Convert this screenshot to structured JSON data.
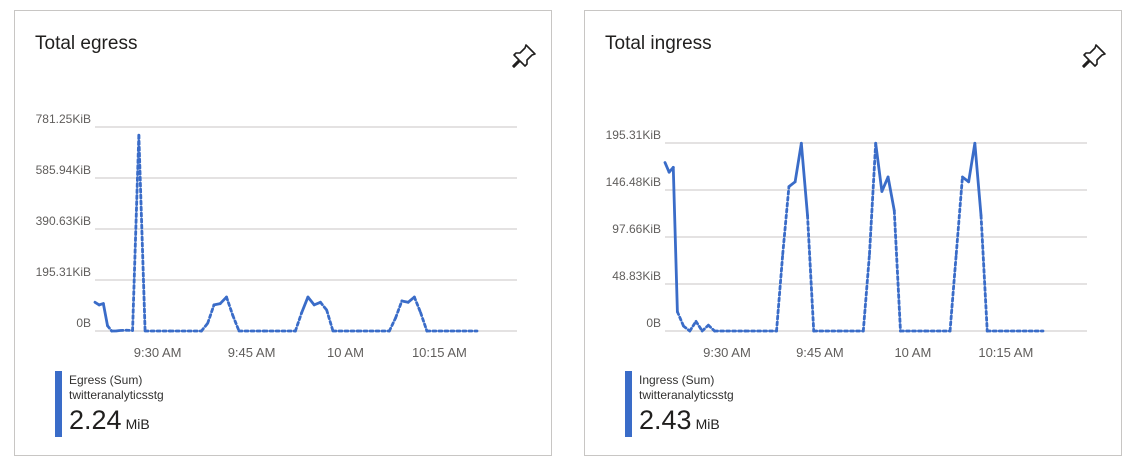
{
  "colors": {
    "series": "#3a6cc8",
    "grid": "#c8c6c4",
    "legend_bar": "#3a6cc8"
  },
  "icons": {
    "pin": "pin-icon"
  },
  "chart_data": [
    {
      "type": "line",
      "title": "Total egress",
      "y_unit": "KiB",
      "ylim": [
        0,
        781.25
      ],
      "y_ticks": [
        0,
        195.31,
        390.63,
        585.94,
        781.25
      ],
      "y_tick_labels": [
        "0B",
        "195.31KiB",
        "390.63KiB",
        "585.94KiB",
        "781.25KiB"
      ],
      "x_range": [
        "09:20",
        "10:21"
      ],
      "x_ticks": [
        "09:30",
        "09:45",
        "10:00",
        "10:15"
      ],
      "x_tick_labels": [
        "9:30 AM",
        "9:45 AM",
        "10 AM",
        "10:15 AM"
      ],
      "grid": true,
      "series": [
        {
          "name": "Egress (Sum)",
          "points": [
            [
              "09:20",
              110,
              "s"
            ],
            [
              "09:20:40",
              100,
              "s"
            ],
            [
              "09:21:20",
              105,
              "s"
            ],
            [
              "09:22",
              20,
              "s"
            ],
            [
              "09:22:40",
              0,
              "d"
            ],
            [
              "09:23:20",
              0,
              "d"
            ],
            [
              "09:24",
              2,
              "d"
            ],
            [
              "09:25",
              3,
              "d"
            ],
            [
              "09:26",
              2,
              "d"
            ],
            [
              "09:27",
              750,
              "d"
            ],
            [
              "09:28",
              0,
              "d"
            ],
            [
              "09:32",
              0,
              "d"
            ],
            [
              "09:37",
              0,
              "d"
            ],
            [
              "09:38",
              30,
              "d"
            ],
            [
              "09:39",
              100,
              "s"
            ],
            [
              "09:40",
              105,
              "s"
            ],
            [
              "09:41",
              130,
              "s"
            ],
            [
              "09:42",
              60,
              "d"
            ],
            [
              "09:43",
              0,
              "d"
            ],
            [
              "09:47",
              0,
              "d"
            ],
            [
              "09:52",
              0,
              "d"
            ],
            [
              "09:53",
              70,
              "s"
            ],
            [
              "09:54",
              130,
              "s"
            ],
            [
              "09:55",
              100,
              "s"
            ],
            [
              "09:56",
              110,
              "s"
            ],
            [
              "09:57",
              80,
              "d"
            ],
            [
              "09:58",
              0,
              "d"
            ],
            [
              "10:02",
              0,
              "d"
            ],
            [
              "10:07",
              0,
              "d"
            ],
            [
              "10:08",
              50,
              "d"
            ],
            [
              "10:09",
              115,
              "s"
            ],
            [
              "10:10",
              110,
              "s"
            ],
            [
              "10:11",
              130,
              "s"
            ],
            [
              "10:12",
              70,
              "d"
            ],
            [
              "10:13",
              0,
              "d"
            ],
            [
              "10:21",
              0,
              "d"
            ]
          ]
        }
      ]
    },
    {
      "type": "line",
      "title": "Total ingress",
      "y_unit": "KiB",
      "ylim": [
        0,
        195.31
      ],
      "y_ticks": [
        0,
        48.83,
        97.66,
        146.48,
        195.31
      ],
      "y_tick_labels": [
        "0B",
        "48.83KiB",
        "97.66KiB",
        "146.48KiB",
        "195.31KiB"
      ],
      "x_range": [
        "09:20",
        "10:21"
      ],
      "x_ticks": [
        "09:30",
        "09:45",
        "10:00",
        "10:15"
      ],
      "x_tick_labels": [
        "9:30 AM",
        "9:45 AM",
        "10 AM",
        "10:15 AM"
      ],
      "grid": true,
      "series": [
        {
          "name": "Ingress (Sum)",
          "points": [
            [
              "09:20",
              175,
              "s"
            ],
            [
              "09:20:40",
              165,
              "s"
            ],
            [
              "09:21:20",
              170,
              "s"
            ],
            [
              "09:22",
              20,
              "s"
            ],
            [
              "09:23",
              5,
              "d"
            ],
            [
              "09:24",
              0,
              "d"
            ],
            [
              "09:25",
              10,
              "d"
            ],
            [
              "09:26",
              0,
              "d"
            ],
            [
              "09:27",
              6,
              "d"
            ],
            [
              "09:28",
              0,
              "d"
            ],
            [
              "09:33",
              0,
              "d"
            ],
            [
              "09:38",
              0,
              "d"
            ],
            [
              "09:39",
              80,
              "d"
            ],
            [
              "09:40",
              150,
              "s"
            ],
            [
              "09:41",
              155,
              "s"
            ],
            [
              "09:42",
              195,
              "s"
            ],
            [
              "09:43",
              120,
              "s"
            ],
            [
              "09:44",
              0,
              "d"
            ],
            [
              "09:48",
              0,
              "d"
            ],
            [
              "09:52",
              0,
              "d"
            ],
            [
              "09:53",
              80,
              "d"
            ],
            [
              "09:54",
              195,
              "s"
            ],
            [
              "09:55",
              145,
              "s"
            ],
            [
              "09:56",
              160,
              "s"
            ],
            [
              "09:57",
              125,
              "s"
            ],
            [
              "09:58",
              0,
              "d"
            ],
            [
              "10:02",
              0,
              "d"
            ],
            [
              "10:06",
              0,
              "d"
            ],
            [
              "10:07",
              80,
              "d"
            ],
            [
              "10:08",
              160,
              "s"
            ],
            [
              "10:09",
              155,
              "s"
            ],
            [
              "10:10",
              195,
              "s"
            ],
            [
              "10:11",
              120,
              "s"
            ],
            [
              "10:12",
              0,
              "d"
            ],
            [
              "10:21",
              0,
              "d"
            ]
          ]
        }
      ]
    }
  ],
  "cards": [
    {
      "title": "Total egress",
      "legend": {
        "series": "Egress (Sum)",
        "resource": "twitteranalyticsstg",
        "value": "2.24",
        "unit": "MiB"
      }
    },
    {
      "title": "Total ingress",
      "legend": {
        "series": "Ingress (Sum)",
        "resource": "twitteranalyticsstg",
        "value": "2.43",
        "unit": "MiB"
      }
    }
  ]
}
